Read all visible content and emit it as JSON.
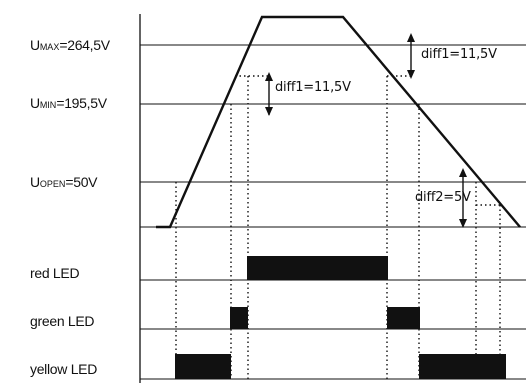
{
  "levels": {
    "umax": {
      "prefix": "U",
      "sub": "MAX",
      "value": "=264,5V"
    },
    "umin": {
      "prefix": "U",
      "sub": "MIN",
      "value": "=195,5V"
    },
    "uopen": {
      "prefix": "U",
      "sub": "OPEN",
      "value": "=50V"
    }
  },
  "annotations": {
    "diff1_upper": "diff1=11,5V",
    "diff1_lower": "diff1=11,5V",
    "diff2": "diff2=5V"
  },
  "leds": {
    "red": "red LED",
    "green": "green LED",
    "yellow": "yellow LED"
  },
  "colors": {
    "line": "#111111",
    "bar": "#111111",
    "background": "#ffffff"
  }
}
